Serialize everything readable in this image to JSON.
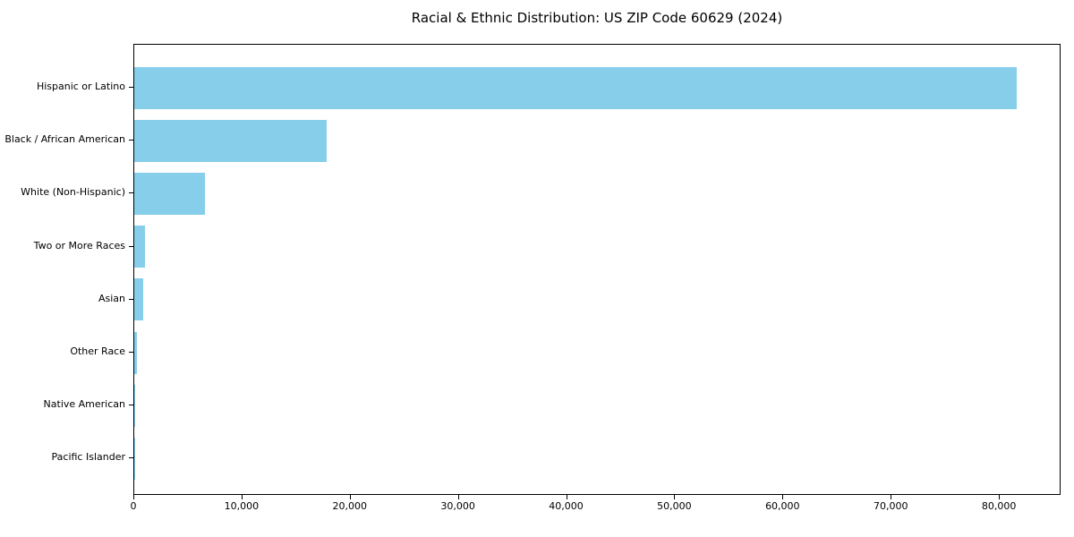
{
  "chart_data": {
    "type": "bar",
    "orientation": "horizontal",
    "title": "Racial & Ethnic Distribution: US ZIP Code 60629 (2024)",
    "categories": [
      "Hispanic or Latino",
      "Black / African American",
      "White (Non-Hispanic)",
      "Two or More Races",
      "Asian",
      "Other Race",
      "Native American",
      "Pacific Islander"
    ],
    "values": [
      81600,
      17800,
      6500,
      1000,
      830,
      250,
      80,
      20
    ],
    "xlabel": "",
    "ylabel": "",
    "xlim": [
      0,
      85700
    ],
    "x_ticks": [
      0,
      10000,
      20000,
      30000,
      40000,
      50000,
      60000,
      70000,
      80000
    ],
    "x_tick_labels": [
      "0",
      "10,000",
      "20,000",
      "30,000",
      "40,000",
      "50,000",
      "60,000",
      "70,000",
      "80,000"
    ],
    "bar_color": "#87CEEB",
    "axis_color": "#000000",
    "background_color": "#FFFFFF",
    "grid": false,
    "legend": null
  }
}
